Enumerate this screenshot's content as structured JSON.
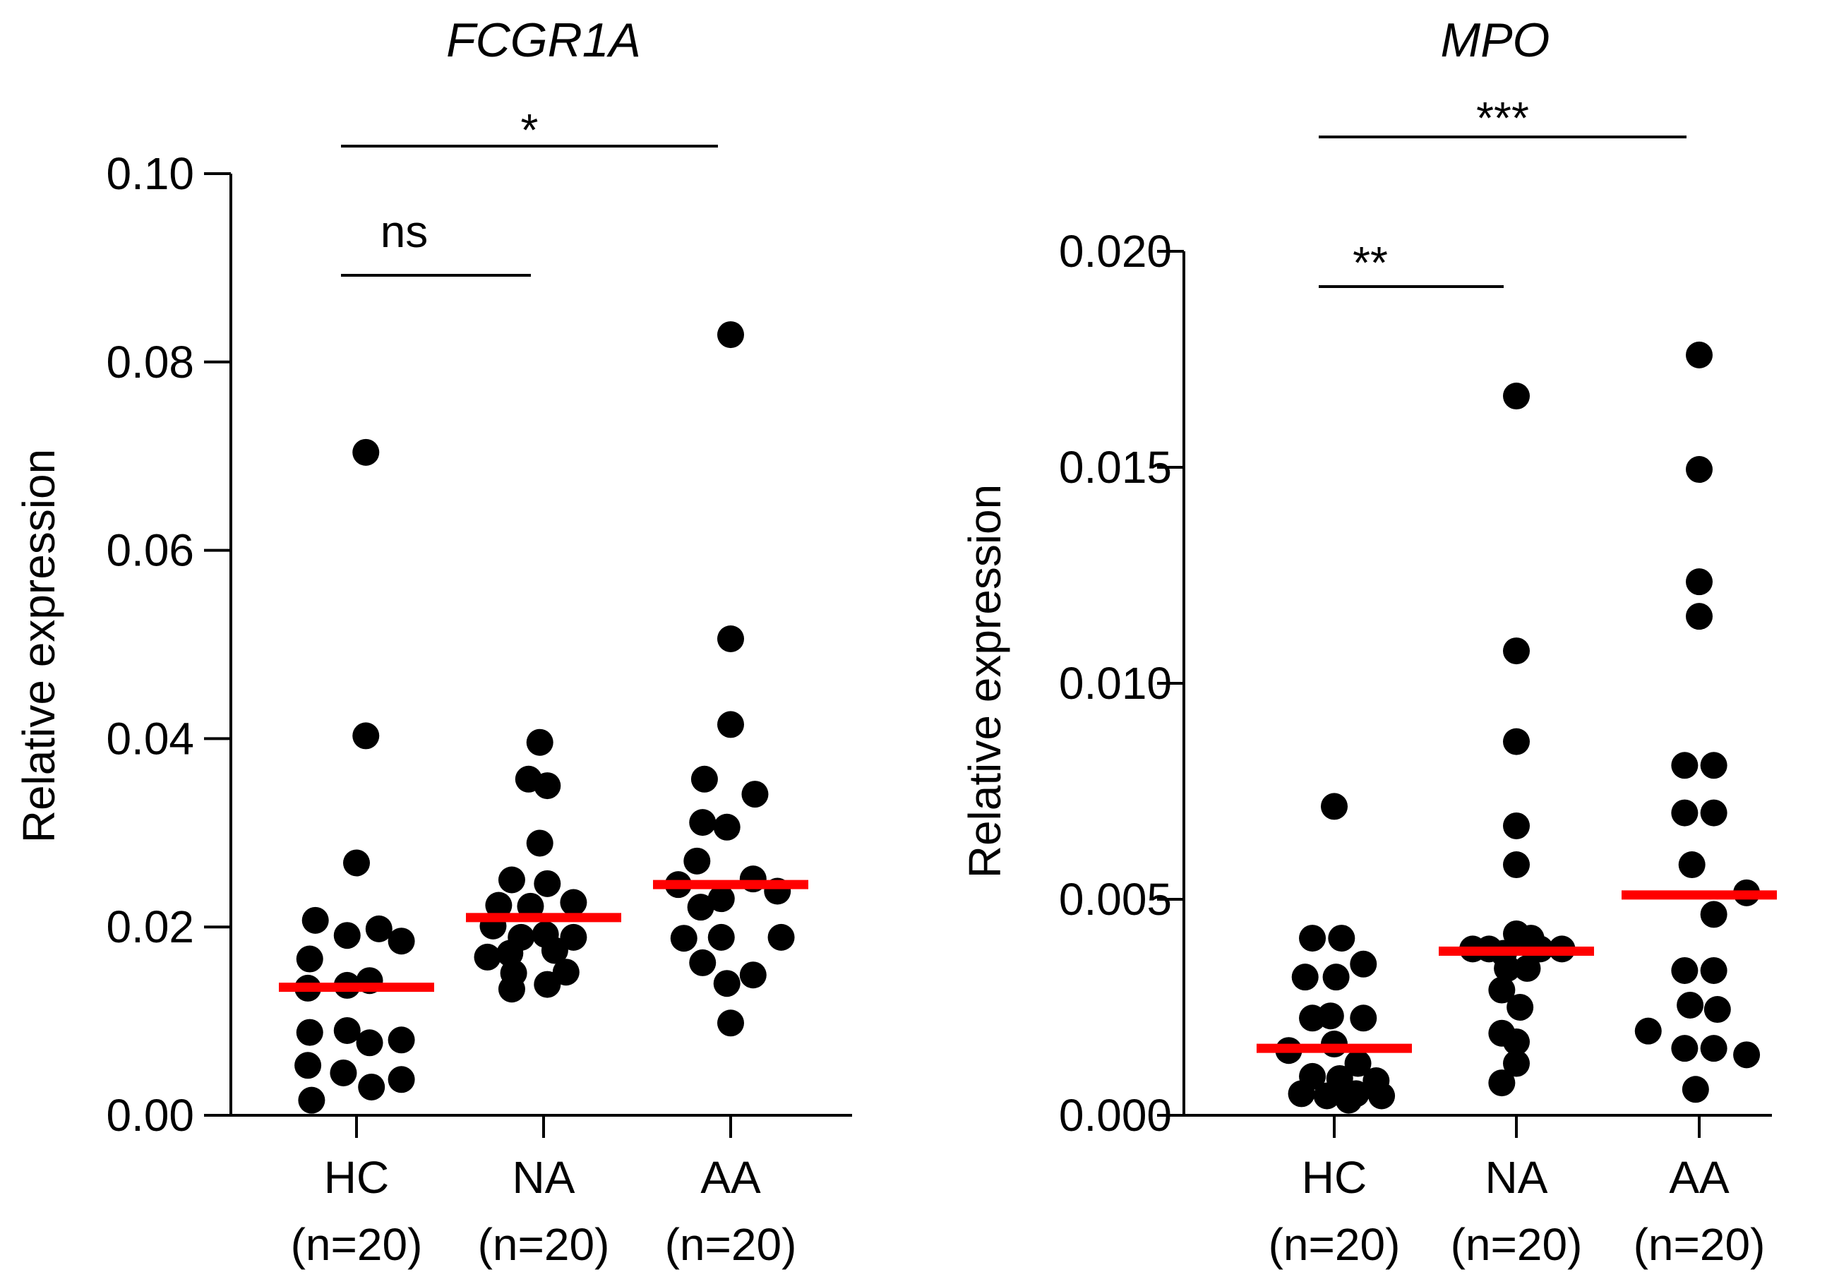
{
  "chart_data": [
    {
      "type": "scatter",
      "title": "FCGR1A",
      "ylabel": "Relative expression",
      "xlabel": "",
      "ylim": [
        0,
        0.1
      ],
      "yticks": [
        "0.00",
        "0.02",
        "0.04",
        "0.06",
        "0.08",
        "0.10"
      ],
      "tick_values": [
        0,
        0.02,
        0.04,
        0.06,
        0.08,
        0.1
      ],
      "marker_color": "#000000",
      "median_color": "#ff0000",
      "groups": [
        {
          "name": "HC",
          "n_label": "(n=20)",
          "median": 0.0136,
          "points": [
            {
              "x": -0.22,
              "y": 0.0207
            },
            {
              "x": 0.05,
              "y": 0.0704
            },
            {
              "x": 0.05,
              "y": 0.0403
            },
            {
              "x": 0.0,
              "y": 0.0268
            },
            {
              "x": -0.05,
              "y": 0.0191
            },
            {
              "x": 0.12,
              "y": 0.0198
            },
            {
              "x": 0.24,
              "y": 0.0185
            },
            {
              "x": -0.25,
              "y": 0.0166
            },
            {
              "x": -0.26,
              "y": 0.0135
            },
            {
              "x": -0.05,
              "y": 0.0138
            },
            {
              "x": 0.07,
              "y": 0.0143
            },
            {
              "x": -0.25,
              "y": 0.0088
            },
            {
              "x": -0.05,
              "y": 0.009
            },
            {
              "x": 0.24,
              "y": 0.008
            },
            {
              "x": 0.07,
              "y": 0.0077
            },
            {
              "x": -0.26,
              "y": 0.0053
            },
            {
              "x": -0.07,
              "y": 0.0045
            },
            {
              "x": 0.24,
              "y": 0.0038
            },
            {
              "x": 0.08,
              "y": 0.003
            },
            {
              "x": -0.24,
              "y": 0.0016
            }
          ]
        },
        {
          "name": "NA",
          "n_label": "(n=20)",
          "median": 0.021,
          "points": [
            {
              "x": -0.02,
              "y": 0.0396
            },
            {
              "x": -0.08,
              "y": 0.0357
            },
            {
              "x": 0.02,
              "y": 0.035
            },
            {
              "x": -0.02,
              "y": 0.0289
            },
            {
              "x": -0.17,
              "y": 0.025
            },
            {
              "x": 0.02,
              "y": 0.0246
            },
            {
              "x": -0.24,
              "y": 0.0223
            },
            {
              "x": -0.07,
              "y": 0.0222
            },
            {
              "x": 0.16,
              "y": 0.0226
            },
            {
              "x": -0.27,
              "y": 0.0201
            },
            {
              "x": 0.16,
              "y": 0.0189
            },
            {
              "x": -0.12,
              "y": 0.0189
            },
            {
              "x": 0.01,
              "y": 0.0192
            },
            {
              "x": -0.18,
              "y": 0.0172
            },
            {
              "x": 0.06,
              "y": 0.0175
            },
            {
              "x": -0.3,
              "y": 0.0168
            },
            {
              "x": -0.16,
              "y": 0.0151
            },
            {
              "x": 0.12,
              "y": 0.0152
            },
            {
              "x": -0.17,
              "y": 0.0134
            },
            {
              "x": 0.02,
              "y": 0.0139
            }
          ]
        },
        {
          "name": "AA",
          "n_label": "(n=20)",
          "median": 0.0245,
          "points": [
            {
              "x": 0.0,
              "y": 0.0829
            },
            {
              "x": 0.0,
              "y": 0.0506
            },
            {
              "x": 0.0,
              "y": 0.0415
            },
            {
              "x": -0.14,
              "y": 0.0357
            },
            {
              "x": 0.13,
              "y": 0.0341
            },
            {
              "x": -0.15,
              "y": 0.0311
            },
            {
              "x": -0.02,
              "y": 0.0306
            },
            {
              "x": -0.18,
              "y": 0.027
            },
            {
              "x": 0.12,
              "y": 0.0251
            },
            {
              "x": -0.28,
              "y": 0.0245
            },
            {
              "x": -0.05,
              "y": 0.023
            },
            {
              "x": 0.25,
              "y": 0.0238
            },
            {
              "x": -0.16,
              "y": 0.0221
            },
            {
              "x": -0.25,
              "y": 0.0188
            },
            {
              "x": -0.05,
              "y": 0.0189
            },
            {
              "x": 0.27,
              "y": 0.0189
            },
            {
              "x": -0.15,
              "y": 0.0162
            },
            {
              "x": 0.12,
              "y": 0.0149
            },
            {
              "x": -0.02,
              "y": 0.014
            },
            {
              "x": 0.0,
              "y": 0.0098
            }
          ]
        }
      ],
      "significance": [
        {
          "from": 0,
          "to": 1,
          "label": "ns"
        },
        {
          "from": 0,
          "to": 2,
          "label": "*"
        }
      ]
    },
    {
      "type": "scatter",
      "title": "MPO",
      "ylabel": "Relative expression",
      "xlabel": "",
      "ylim": [
        0,
        0.02
      ],
      "yticks": [
        "0.000",
        "0.005",
        "0.010",
        "0.015",
        "0.020"
      ],
      "tick_values": [
        0,
        0.005,
        0.01,
        0.015,
        0.02
      ],
      "marker_color": "#000000",
      "median_color": "#ff0000",
      "groups": [
        {
          "name": "HC",
          "n_label": "(n=20)",
          "median": 0.00155,
          "points": [
            {
              "x": 0.0,
              "y": 0.00715
            },
            {
              "x": -0.12,
              "y": 0.0041
            },
            {
              "x": 0.04,
              "y": 0.0041
            },
            {
              "x": 0.16,
              "y": 0.0035
            },
            {
              "x": -0.16,
              "y": 0.0032
            },
            {
              "x": 0.01,
              "y": 0.0032
            },
            {
              "x": -0.12,
              "y": 0.00225
            },
            {
              "x": 0.16,
              "y": 0.00225
            },
            {
              "x": -0.02,
              "y": 0.0023
            },
            {
              "x": 0.0,
              "y": 0.00165
            },
            {
              "x": -0.25,
              "y": 0.0015
            },
            {
              "x": 0.13,
              "y": 0.0012
            },
            {
              "x": -0.12,
              "y": 0.0009
            },
            {
              "x": 0.03,
              "y": 0.00085
            },
            {
              "x": 0.23,
              "y": 0.0008
            },
            {
              "x": -0.18,
              "y": 0.0005
            },
            {
              "x": 0.12,
              "y": 0.0005
            },
            {
              "x": 0.26,
              "y": 0.00045
            },
            {
              "x": -0.04,
              "y": 0.00045
            },
            {
              "x": 0.08,
              "y": 0.00035
            }
          ]
        },
        {
          "name": "NA",
          "n_label": "(n=20)",
          "median": 0.0038,
          "points": [
            {
              "x": 0.0,
              "y": 0.01665
            },
            {
              "x": 0.0,
              "y": 0.01075
            },
            {
              "x": 0.0,
              "y": 0.00865
            },
            {
              "x": 0.0,
              "y": 0.0067
            },
            {
              "x": 0.0,
              "y": 0.0058
            },
            {
              "x": 0.0,
              "y": 0.0042
            },
            {
              "x": 0.08,
              "y": 0.0041
            },
            {
              "x": -0.24,
              "y": 0.00385
            },
            {
              "x": -0.15,
              "y": 0.00385
            },
            {
              "x": -0.07,
              "y": 0.00375
            },
            {
              "x": 0.13,
              "y": 0.00385
            },
            {
              "x": 0.25,
              "y": 0.00385
            },
            {
              "x": -0.05,
              "y": 0.0034
            },
            {
              "x": 0.06,
              "y": 0.0034
            },
            {
              "x": -0.08,
              "y": 0.0029
            },
            {
              "x": 0.02,
              "y": 0.0025
            },
            {
              "x": -0.08,
              "y": 0.0019
            },
            {
              "x": 0.0,
              "y": 0.0017
            },
            {
              "x": 0.0,
              "y": 0.0012
            },
            {
              "x": -0.08,
              "y": 0.00075
            }
          ]
        },
        {
          "name": "AA",
          "n_label": "(n=20)",
          "median": 0.0051,
          "points": [
            {
              "x": 0.0,
              "y": 0.0176
            },
            {
              "x": 0.0,
              "y": 0.01495
            },
            {
              "x": 0.0,
              "y": 0.01235
            },
            {
              "x": 0.0,
              "y": 0.01155
            },
            {
              "x": -0.08,
              "y": 0.0081
            },
            {
              "x": 0.08,
              "y": 0.0081
            },
            {
              "x": -0.08,
              "y": 0.007
            },
            {
              "x": 0.08,
              "y": 0.007
            },
            {
              "x": -0.04,
              "y": 0.0058
            },
            {
              "x": 0.26,
              "y": 0.00515
            },
            {
              "x": 0.08,
              "y": 0.00465
            },
            {
              "x": -0.08,
              "y": 0.00335
            },
            {
              "x": 0.08,
              "y": 0.00335
            },
            {
              "x": -0.05,
              "y": 0.00255
            },
            {
              "x": 0.1,
              "y": 0.00245
            },
            {
              "x": -0.28,
              "y": 0.00195
            },
            {
              "x": -0.08,
              "y": 0.00155
            },
            {
              "x": 0.08,
              "y": 0.00155
            },
            {
              "x": 0.26,
              "y": 0.0014
            },
            {
              "x": -0.02,
              "y": 0.0006
            }
          ]
        }
      ],
      "significance": [
        {
          "from": 0,
          "to": 1,
          "label": "**"
        },
        {
          "from": 0,
          "to": 2,
          "label": "***"
        }
      ]
    }
  ]
}
